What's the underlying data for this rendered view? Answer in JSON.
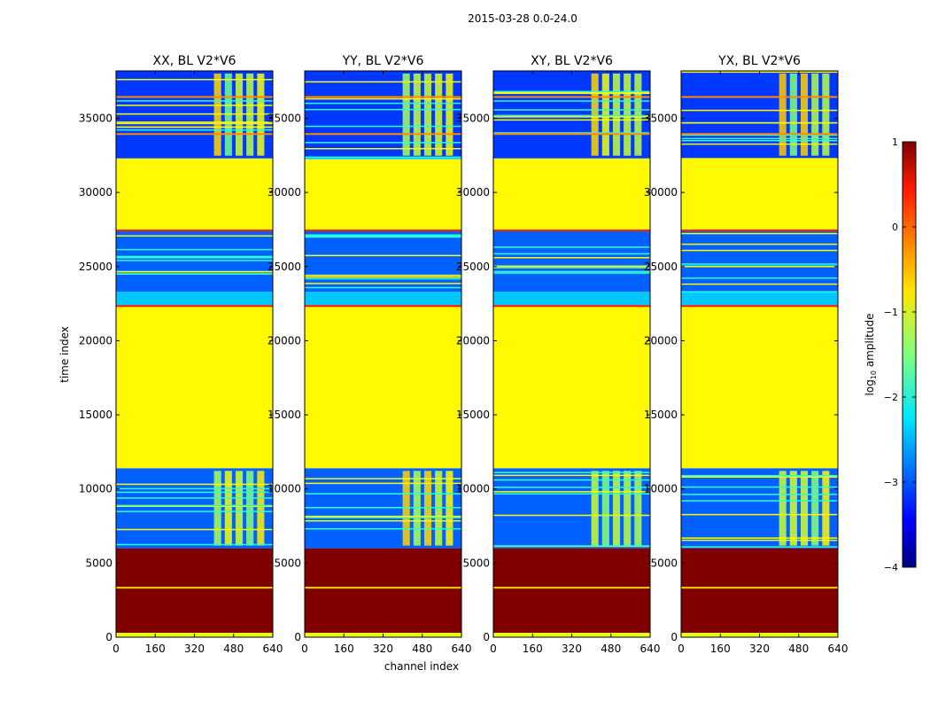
{
  "figure": {
    "suptitle": "2015-03-28 0.0-24.0",
    "ylabel": "time index",
    "xlabel": "channel index"
  },
  "chart_data": {
    "type": "heatmap",
    "title": "2015-03-28 0.0-24.0",
    "xlabel": "channel index",
    "ylabel": "time index",
    "xlim": [
      0,
      640
    ],
    "ylim": [
      0,
      38200
    ],
    "xticks": [
      0,
      160,
      320,
      480,
      640
    ],
    "yticks": [
      0,
      5000,
      10000,
      15000,
      20000,
      25000,
      30000,
      35000
    ],
    "panels": [
      {
        "title": "XX, BL V2*V6"
      },
      {
        "title": "YY, BL V2*V6"
      },
      {
        "title": "XY, BL V2*V6"
      },
      {
        "title": "YX, BL V2*V6"
      }
    ],
    "colorbar": {
      "label": "log10 amplitude",
      "label_main": "log",
      "label_sub": "10",
      "label_suffix": " amplitude",
      "range": [
        -4,
        1
      ],
      "ticks": [
        1,
        0,
        -1,
        -2,
        -3,
        -4
      ],
      "tick_labels": [
        "1",
        "0",
        "−1",
        "−2",
        "−3",
        "−4"
      ],
      "colormap": "jet"
    },
    "time_bands": [
      {
        "t0": 0,
        "t1": 300,
        "value": -1.0
      },
      {
        "t0": 300,
        "t1": 6000,
        "value": 1.0
      },
      {
        "t0": 6000,
        "t1": 11400,
        "value": -2.9,
        "feature": "channel_stripes"
      },
      {
        "t0": 11400,
        "t1": 22400,
        "value": -0.85
      },
      {
        "t0": 22400,
        "t1": 23300,
        "value": -2.4
      },
      {
        "t0": 23300,
        "t1": 27500,
        "value": -2.9,
        "feature": "flagged_lines"
      },
      {
        "t0": 27500,
        "t1": 32300,
        "value": -0.85
      },
      {
        "t0": 32300,
        "t1": 38200,
        "value": -3.1,
        "feature": "channel_stripes"
      }
    ],
    "channel_stripe_region": [
      400,
      620
    ]
  }
}
